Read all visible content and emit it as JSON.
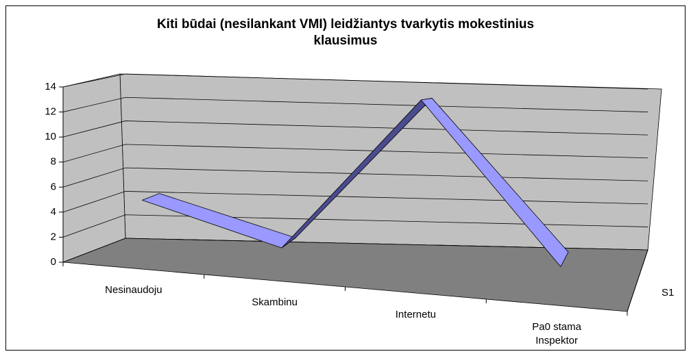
{
  "chart_data": {
    "type": "line3d",
    "title": "Kiti būdai (nesilankant VMI) leidžiantys tvarkytis mokestinius klausimus",
    "categories": [
      "Nesinaudoju",
      "Skambinu",
      "Internetu",
      "Pa0 stama Inspektor"
    ],
    "series": [
      {
        "name": "S1",
        "color": "#9999ff",
        "values": [
          5,
          2,
          13,
          2
        ]
      }
    ],
    "ylim": [
      0,
      14
    ],
    "yticks": [
      0,
      2,
      4,
      6,
      8,
      10,
      12,
      14
    ],
    "grid": true
  }
}
